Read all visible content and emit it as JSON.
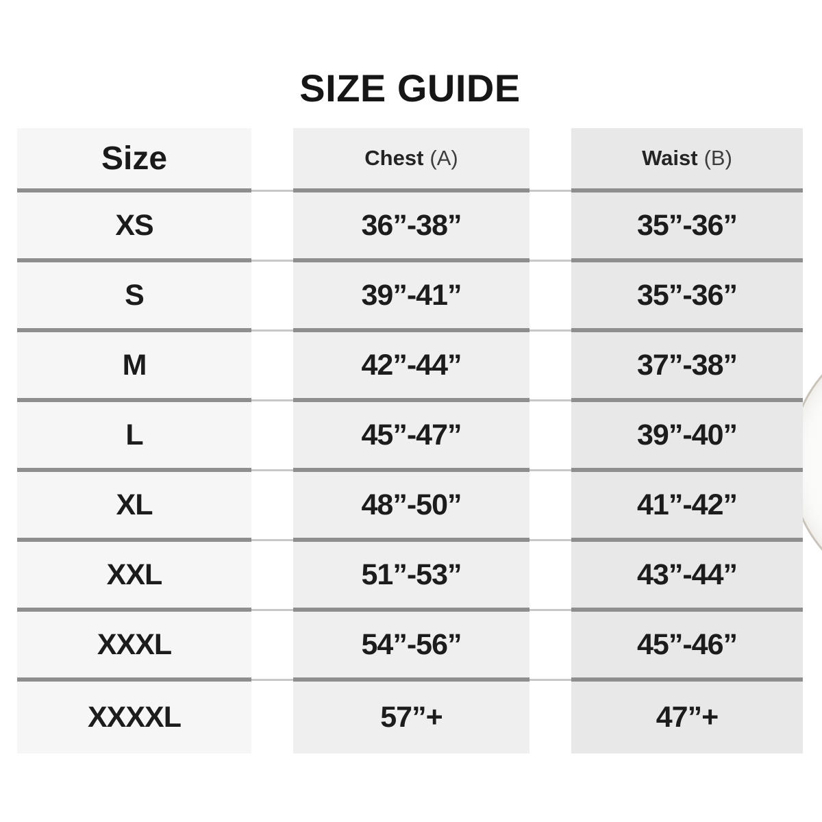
{
  "title": "SIZE GUIDE",
  "table": {
    "columns": [
      {
        "label": "Size",
        "sub": ""
      },
      {
        "label": "Chest",
        "sub": "(A)"
      },
      {
        "label": "Waist",
        "sub": "(B)"
      }
    ],
    "rows": [
      {
        "size": "XS",
        "chest": "36”-38”",
        "waist": "35”-36”"
      },
      {
        "size": "S",
        "chest": "39”-41”",
        "waist": "35”-36”"
      },
      {
        "size": "M",
        "chest": "42”-44”",
        "waist": "37”-38”"
      },
      {
        "size": "L",
        "chest": "45”-47”",
        "waist": "39”-40”"
      },
      {
        "size": "XL",
        "chest": "48”-50”",
        "waist": "41”-42”"
      },
      {
        "size": "XXL",
        "chest": "51”-53”",
        "waist": "43”-44”"
      },
      {
        "size": "XXXL",
        "chest": "54”-56”",
        "waist": "45”-46”"
      },
      {
        "size": "XXXXL",
        "chest": "57”+",
        "waist": "47”+"
      }
    ]
  },
  "colors": {
    "size_column_bg": "#f6f6f6",
    "chest_column_bg": "#efefef",
    "waist_column_bg": "#e8e8e8",
    "divider_dark": "#8e8e8e",
    "divider_light": "#c7c7c7",
    "text": "#1c1c1c",
    "page_bg": "#ffffff"
  },
  "chart_data": {
    "type": "table",
    "title": "SIZE GUIDE",
    "columns": [
      "Size",
      "Chest (A)",
      "Waist (B)"
    ],
    "rows": [
      [
        "XS",
        "36”-38”",
        "35”-36”"
      ],
      [
        "S",
        "39”-41”",
        "35”-36”"
      ],
      [
        "M",
        "42”-44”",
        "37”-38”"
      ],
      [
        "L",
        "45”-47”",
        "39”-40”"
      ],
      [
        "XL",
        "48”-50”",
        "41”-42”"
      ],
      [
        "XXL",
        "51”-53”",
        "43”-44”"
      ],
      [
        "XXXL",
        "54”-56”",
        "45”-46”"
      ],
      [
        "XXXXL",
        "57”+",
        "47”+"
      ]
    ],
    "layout_hints": {
      "header_position": "top",
      "column_gutters": true,
      "row_dividers": "gray horizontal rules",
      "units": "inches"
    }
  }
}
